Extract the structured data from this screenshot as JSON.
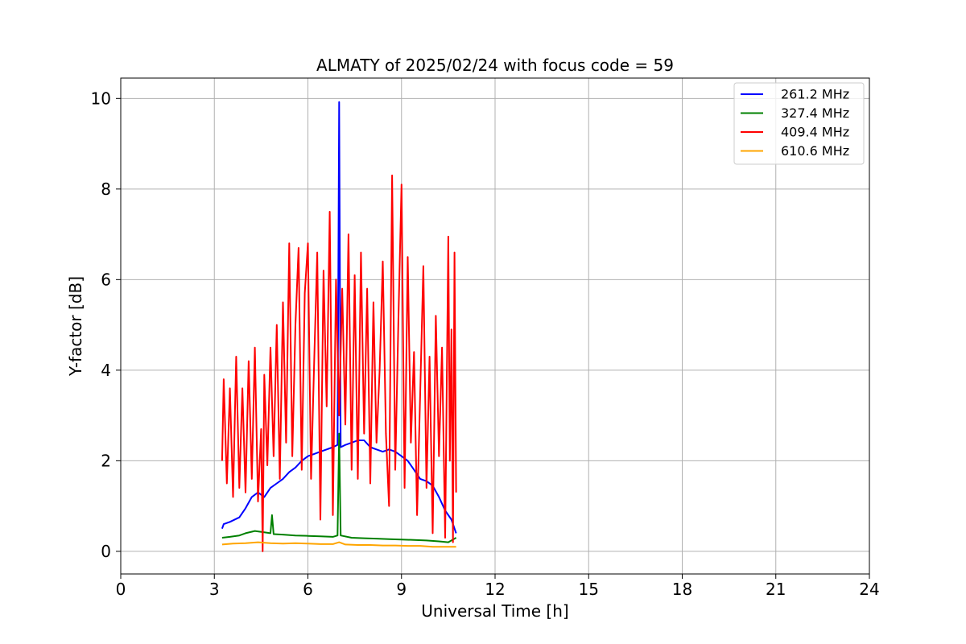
{
  "chart_data": {
    "type": "line",
    "title": "ALMATY of 2025/02/24 with focus code = 59",
    "xlabel": "Universal Time [h]",
    "ylabel": "Y-factor [dB]",
    "xlim": [
      0,
      24
    ],
    "ylim": [
      -0.5,
      10.45
    ],
    "xticks": [
      0,
      3,
      6,
      9,
      12,
      15,
      18,
      21,
      24
    ],
    "yticks": [
      0,
      2,
      4,
      6,
      8,
      10
    ],
    "xtick_labels": [
      "0",
      "3",
      "6",
      "9",
      "12",
      "15",
      "18",
      "21",
      "24"
    ],
    "ytick_labels": [
      "0",
      "2",
      "4",
      "6",
      "8",
      "10"
    ],
    "grid": true,
    "legend_position": "top-right",
    "series": [
      {
        "name": "261.2 MHz",
        "color": "#0000ff",
        "x": [
          3.25,
          3.3,
          3.5,
          3.8,
          4.0,
          4.2,
          4.4,
          4.6,
          4.8,
          5.0,
          5.2,
          5.4,
          5.6,
          5.8,
          6.0,
          6.2,
          6.4,
          6.6,
          6.8,
          6.95,
          7.0,
          7.05,
          7.2,
          7.4,
          7.6,
          7.8,
          8.0,
          8.2,
          8.4,
          8.6,
          8.8,
          9.0,
          9.2,
          9.4,
          9.6,
          9.8,
          10.0,
          10.2,
          10.4,
          10.6,
          10.75
        ],
        "y": [
          0.5,
          0.6,
          0.65,
          0.75,
          0.95,
          1.2,
          1.3,
          1.2,
          1.4,
          1.5,
          1.6,
          1.75,
          1.85,
          2.0,
          2.1,
          2.15,
          2.2,
          2.25,
          2.3,
          2.35,
          9.92,
          2.3,
          2.35,
          2.4,
          2.45,
          2.45,
          2.3,
          2.25,
          2.2,
          2.25,
          2.2,
          2.1,
          2.0,
          1.8,
          1.6,
          1.55,
          1.45,
          1.2,
          0.9,
          0.7,
          0.4
        ]
      },
      {
        "name": "327.4 MHz",
        "color": "#008000",
        "x": [
          3.25,
          3.5,
          3.8,
          4.0,
          4.3,
          4.6,
          4.8,
          4.85,
          4.9,
          5.2,
          5.6,
          6.0,
          6.4,
          6.8,
          6.95,
          7.0,
          7.05,
          7.4,
          7.8,
          8.2,
          8.6,
          9.0,
          9.4,
          9.8,
          10.2,
          10.5,
          10.75
        ],
        "y": [
          0.3,
          0.32,
          0.35,
          0.4,
          0.45,
          0.42,
          0.4,
          0.8,
          0.38,
          0.37,
          0.35,
          0.34,
          0.33,
          0.32,
          0.35,
          2.6,
          0.35,
          0.3,
          0.29,
          0.28,
          0.27,
          0.26,
          0.25,
          0.24,
          0.22,
          0.2,
          0.3
        ]
      },
      {
        "name": "409.4 MHz",
        "color": "#ff0000",
        "x": [
          3.25,
          3.3,
          3.4,
          3.5,
          3.6,
          3.7,
          3.8,
          3.9,
          4.0,
          4.1,
          4.2,
          4.3,
          4.4,
          4.5,
          4.55,
          4.6,
          4.7,
          4.8,
          4.9,
          5.0,
          5.1,
          5.2,
          5.3,
          5.4,
          5.5,
          5.6,
          5.7,
          5.8,
          5.9,
          6.0,
          6.1,
          6.2,
          6.3,
          6.4,
          6.5,
          6.6,
          6.7,
          6.8,
          6.9,
          7.0,
          7.1,
          7.2,
          7.3,
          7.4,
          7.5,
          7.6,
          7.7,
          7.8,
          7.9,
          8.0,
          8.1,
          8.2,
          8.3,
          8.4,
          8.5,
          8.6,
          8.7,
          8.8,
          8.9,
          9.0,
          9.1,
          9.2,
          9.3,
          9.4,
          9.5,
          9.6,
          9.7,
          9.8,
          9.9,
          10.0,
          10.1,
          10.2,
          10.3,
          10.4,
          10.5,
          10.55,
          10.6,
          10.65,
          10.7,
          10.75
        ],
        "y": [
          2.0,
          3.8,
          1.5,
          3.6,
          1.2,
          4.3,
          1.4,
          3.6,
          1.3,
          4.2,
          1.6,
          4.5,
          1.1,
          2.7,
          0.0,
          3.9,
          1.9,
          4.5,
          2.1,
          5.0,
          1.6,
          5.5,
          2.4,
          6.8,
          2.1,
          5.0,
          6.7,
          1.8,
          5.7,
          6.8,
          1.6,
          4.2,
          6.6,
          0.7,
          6.2,
          3.2,
          7.5,
          0.8,
          6.0,
          3.0,
          5.8,
          2.8,
          7.0,
          1.8,
          6.1,
          1.6,
          6.6,
          2.6,
          5.8,
          1.5,
          5.5,
          2.4,
          4.0,
          6.4,
          2.6,
          1.0,
          8.3,
          1.8,
          5.1,
          8.1,
          1.4,
          6.5,
          2.4,
          4.4,
          0.8,
          3.5,
          6.3,
          1.4,
          4.3,
          0.4,
          5.2,
          2.1,
          4.5,
          0.3,
          6.95,
          2.0,
          4.9,
          0.2,
          6.6,
          1.3
        ]
      },
      {
        "name": "610.6 MHz",
        "color": "#ffa500",
        "x": [
          3.25,
          3.6,
          4.0,
          4.4,
          4.8,
          5.2,
          5.6,
          6.0,
          6.4,
          6.8,
          7.0,
          7.2,
          7.6,
          8.0,
          8.4,
          8.8,
          9.2,
          9.6,
          10.0,
          10.4,
          10.75
        ],
        "y": [
          0.15,
          0.17,
          0.18,
          0.2,
          0.18,
          0.17,
          0.18,
          0.17,
          0.16,
          0.16,
          0.2,
          0.15,
          0.14,
          0.14,
          0.13,
          0.13,
          0.12,
          0.12,
          0.1,
          0.1,
          0.1
        ]
      }
    ]
  }
}
